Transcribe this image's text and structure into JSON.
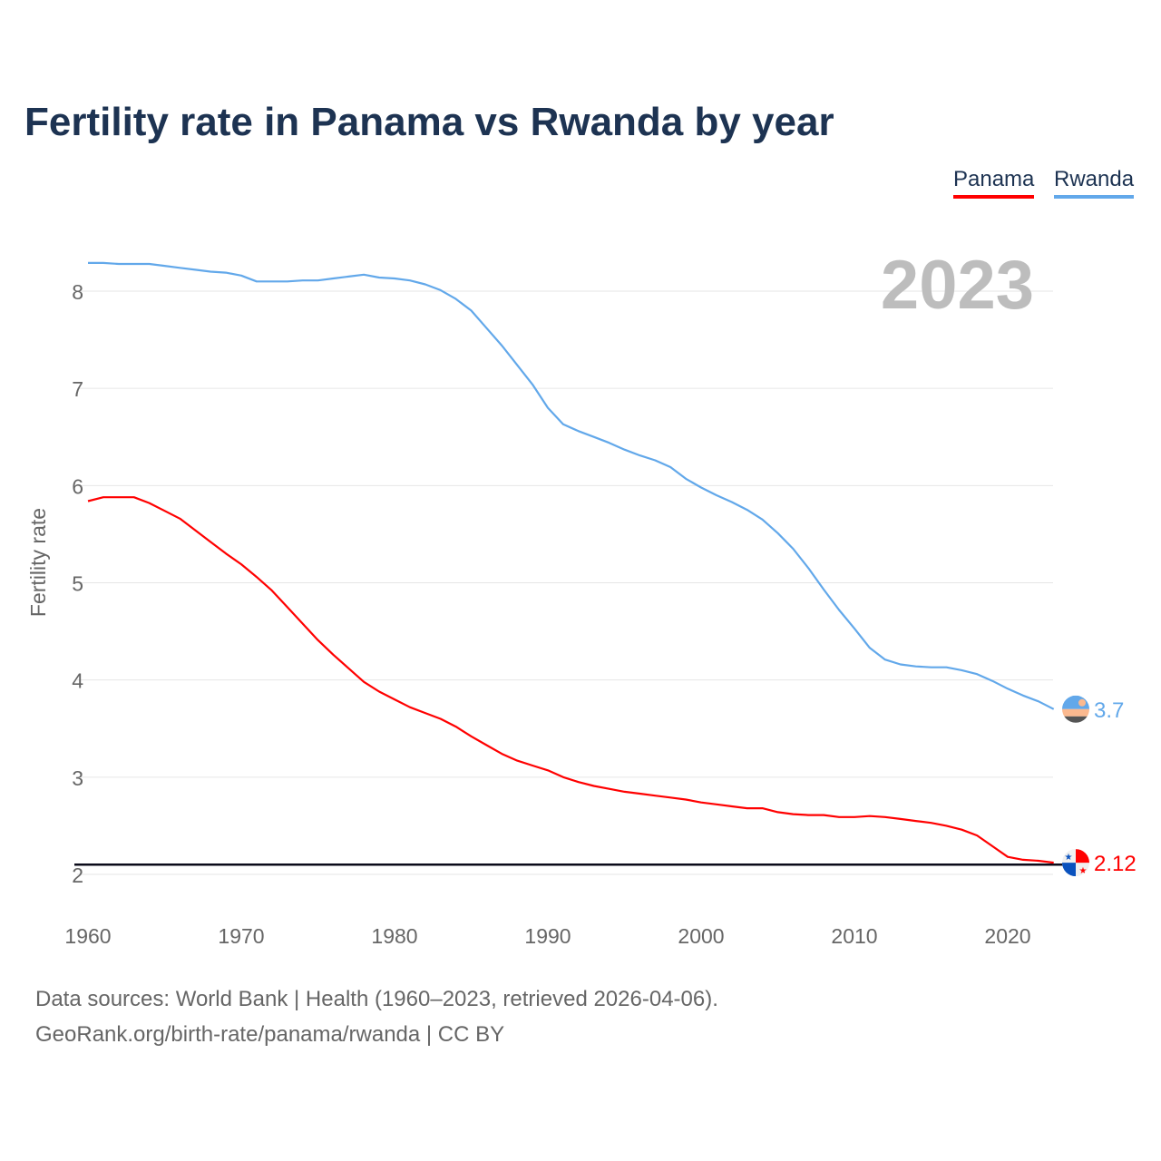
{
  "chart_data": {
    "type": "line",
    "title": "Fertility rate in Panama vs Rwanda by year",
    "xlabel": "",
    "ylabel": "Fertility rate",
    "xlim": [
      1960,
      2023
    ],
    "ylim": [
      2,
      8.4
    ],
    "x_ticks": [
      "1960",
      "1970",
      "1980",
      "1990",
      "2000",
      "2010",
      "2020"
    ],
    "y_ticks": [
      "2",
      "3",
      "4",
      "5",
      "6",
      "7",
      "8"
    ],
    "grid": true,
    "legend_position": "top-right",
    "year_label": "2023",
    "reference_line": 2.1,
    "x": [
      1960,
      1961,
      1962,
      1963,
      1964,
      1965,
      1966,
      1967,
      1968,
      1969,
      1970,
      1971,
      1972,
      1973,
      1974,
      1975,
      1976,
      1977,
      1978,
      1979,
      1980,
      1981,
      1982,
      1983,
      1984,
      1985,
      1986,
      1987,
      1988,
      1989,
      1990,
      1991,
      1992,
      1993,
      1994,
      1995,
      1996,
      1997,
      1998,
      1999,
      2000,
      2001,
      2002,
      2003,
      2004,
      2005,
      2006,
      2007,
      2008,
      2009,
      2010,
      2011,
      2012,
      2013,
      2014,
      2015,
      2016,
      2017,
      2018,
      2019,
      2020,
      2021,
      2022,
      2023
    ],
    "series": [
      {
        "name": "Panama",
        "color": "#ff0000",
        "end_label": "2.12",
        "flag": "panama-flag",
        "values": [
          5.84,
          5.88,
          5.88,
          5.88,
          5.82,
          5.74,
          5.66,
          5.54,
          5.42,
          5.3,
          5.19,
          5.06,
          4.92,
          4.75,
          4.58,
          4.41,
          4.26,
          4.12,
          3.98,
          3.88,
          3.8,
          3.72,
          3.66,
          3.6,
          3.52,
          3.42,
          3.33,
          3.24,
          3.17,
          3.12,
          3.07,
          3.0,
          2.95,
          2.91,
          2.88,
          2.85,
          2.83,
          2.81,
          2.79,
          2.77,
          2.74,
          2.72,
          2.7,
          2.68,
          2.68,
          2.64,
          2.62,
          2.61,
          2.61,
          2.59,
          2.59,
          2.6,
          2.59,
          2.57,
          2.55,
          2.53,
          2.5,
          2.46,
          2.4,
          2.29,
          2.18,
          2.15,
          2.14,
          2.12
        ]
      },
      {
        "name": "Rwanda",
        "color": "#62a8ea",
        "end_label": "3.7",
        "flag": "rwanda-flag",
        "values": [
          8.29,
          8.29,
          8.28,
          8.28,
          8.28,
          8.26,
          8.24,
          8.22,
          8.2,
          8.19,
          8.16,
          8.1,
          8.1,
          8.1,
          8.11,
          8.11,
          8.13,
          8.15,
          8.17,
          8.14,
          8.13,
          8.11,
          8.07,
          8.01,
          7.92,
          7.8,
          7.62,
          7.44,
          7.24,
          7.04,
          6.8,
          6.63,
          6.56,
          6.5,
          6.44,
          6.37,
          6.31,
          6.26,
          6.19,
          6.07,
          5.98,
          5.9,
          5.83,
          5.75,
          5.65,
          5.51,
          5.35,
          5.15,
          4.93,
          4.72,
          4.53,
          4.33,
          4.21,
          4.16,
          4.14,
          4.13,
          4.13,
          4.1,
          4.06,
          3.99,
          3.91,
          3.84,
          3.78,
          3.7
        ]
      }
    ]
  },
  "footer": {
    "line1": "Data sources: World Bank | Health (1960–2023, retrieved 2026-04-06).",
    "line2": "GeoRank.org/birth-rate/panama/rwanda | CC BY"
  }
}
